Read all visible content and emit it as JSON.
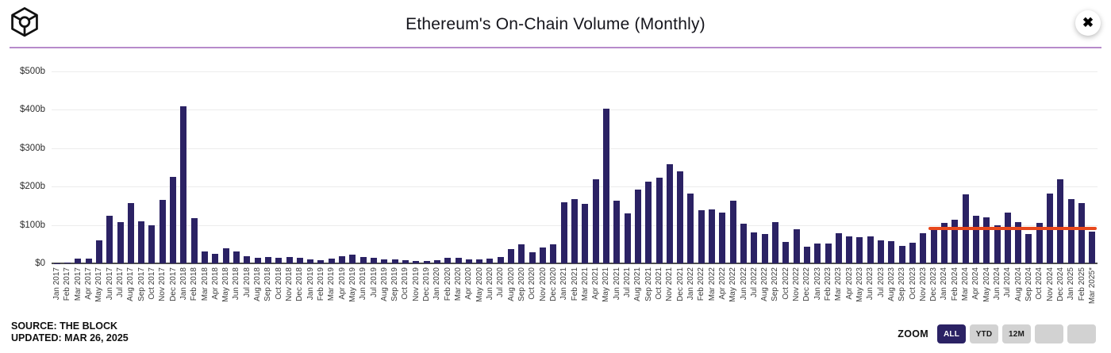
{
  "header": {
    "title": "Ethereum's On-Chain Volume (Monthly)",
    "logo_name": "the-block-logo",
    "close_label": "✖"
  },
  "chart_data": {
    "type": "bar",
    "title": "Ethereum's On-Chain Volume (Monthly)",
    "unit": "USD billions",
    "bar_color": "#2b2264",
    "grid": true,
    "ylim": [
      0,
      500
    ],
    "yticks": [
      {
        "label": "$0",
        "value": 0
      },
      {
        "label": "$100b",
        "value": 100
      },
      {
        "label": "$200b",
        "value": 200
      },
      {
        "label": "$300b",
        "value": 300
      },
      {
        "label": "$400b",
        "value": 400
      },
      {
        "label": "$500b",
        "value": 500
      }
    ],
    "categories": [
      "Jan 2017",
      "Feb 2017",
      "Mar 2017",
      "Apr 2017",
      "May 2017",
      "Jun 2017",
      "Jul 2017",
      "Aug 2017",
      "Sep 2017",
      "Oct 2017",
      "Nov 2017",
      "Dec 2017",
      "Jan 2018",
      "Feb 2018",
      "Mar 2018",
      "Apr 2018",
      "May 2018",
      "Jun 2018",
      "Jul 2018",
      "Aug 2018",
      "Sep 2018",
      "Oct 2018",
      "Nov 2018",
      "Dec 2018",
      "Jan 2019",
      "Feb 2019",
      "Mar 2019",
      "Apr 2019",
      "May 2019",
      "Jun 2019",
      "Jul 2019",
      "Aug 2019",
      "Sep 2019",
      "Oct 2019",
      "Nov 2019",
      "Dec 2019",
      "Jan 2020",
      "Feb 2020",
      "Mar 2020",
      "Apr 2020",
      "May 2020",
      "Jun 2020",
      "Jul 2020",
      "Aug 2020",
      "Sep 2020",
      "Oct 2020",
      "Nov 2020",
      "Dec 2020",
      "Jan 2021",
      "Feb 2021",
      "Mar 2021",
      "Apr 2021",
      "May 2021",
      "Jun 2021",
      "Jul 2021",
      "Aug 2021",
      "Sep 2021",
      "Oct 2021",
      "Nov 2021",
      "Dec 2021",
      "Jan 2022",
      "Feb 2022",
      "Mar 2022",
      "Apr 2022",
      "May 2022",
      "Jun 2022",
      "Jul 2022",
      "Aug 2022",
      "Sep 2022",
      "Oct 2022",
      "Nov 2022",
      "Dec 2022",
      "Jan 2023",
      "Feb 2023",
      "Mar 2023",
      "Apr 2023",
      "May 2023",
      "Jun 2023",
      "Jul 2023",
      "Aug 2023",
      "Sep 2023",
      "Oct 2023",
      "Nov 2023",
      "Dec 2023",
      "Jan 2024",
      "Feb 2024",
      "Mar 2024",
      "Apr 2024",
      "May 2024",
      "Jun 2024",
      "Jul 2024",
      "Aug 2024",
      "Sep 2024",
      "Oct 2024",
      "Nov 2024",
      "Dec 2024",
      "Jan 2025",
      "Feb 2025",
      "Mar 2025*"
    ],
    "values": [
      1,
      2,
      12,
      12,
      59,
      125,
      107,
      156,
      109,
      99,
      166,
      225,
      410,
      117,
      30,
      24,
      39,
      31,
      19,
      15,
      17,
      14,
      17,
      15,
      10,
      8,
      12,
      19,
      22,
      16,
      14,
      11,
      11,
      9,
      7,
      7,
      9,
      15,
      15,
      10,
      11,
      12,
      17,
      37,
      49,
      29,
      42,
      50,
      159,
      168,
      155,
      218,
      403,
      163,
      130,
      192,
      213,
      223,
      258,
      240,
      182,
      139,
      140,
      132,
      164,
      104,
      81,
      77,
      108,
      55,
      88,
      43,
      52,
      52,
      78,
      71,
      68,
      70,
      59,
      57,
      45,
      54,
      78,
      92,
      106,
      114,
      180,
      123,
      120,
      100,
      132,
      108,
      77,
      106,
      182,
      220,
      168,
      158,
      82
    ],
    "trend_line": {
      "value": 90,
      "start": "Dec 2023",
      "end": "Mar 2025*",
      "color": "#e8481c"
    }
  },
  "footer": {
    "source": "SOURCE: THE BLOCK",
    "updated": "UPDATED: MAR 26, 2025"
  },
  "zoom": {
    "label": "ZOOM",
    "buttons": [
      {
        "label": "ALL",
        "active": true
      },
      {
        "label": "YTD",
        "active": false
      },
      {
        "label": "12M",
        "active": false
      },
      {
        "label": "",
        "active": false
      },
      {
        "label": "",
        "active": false
      }
    ]
  }
}
